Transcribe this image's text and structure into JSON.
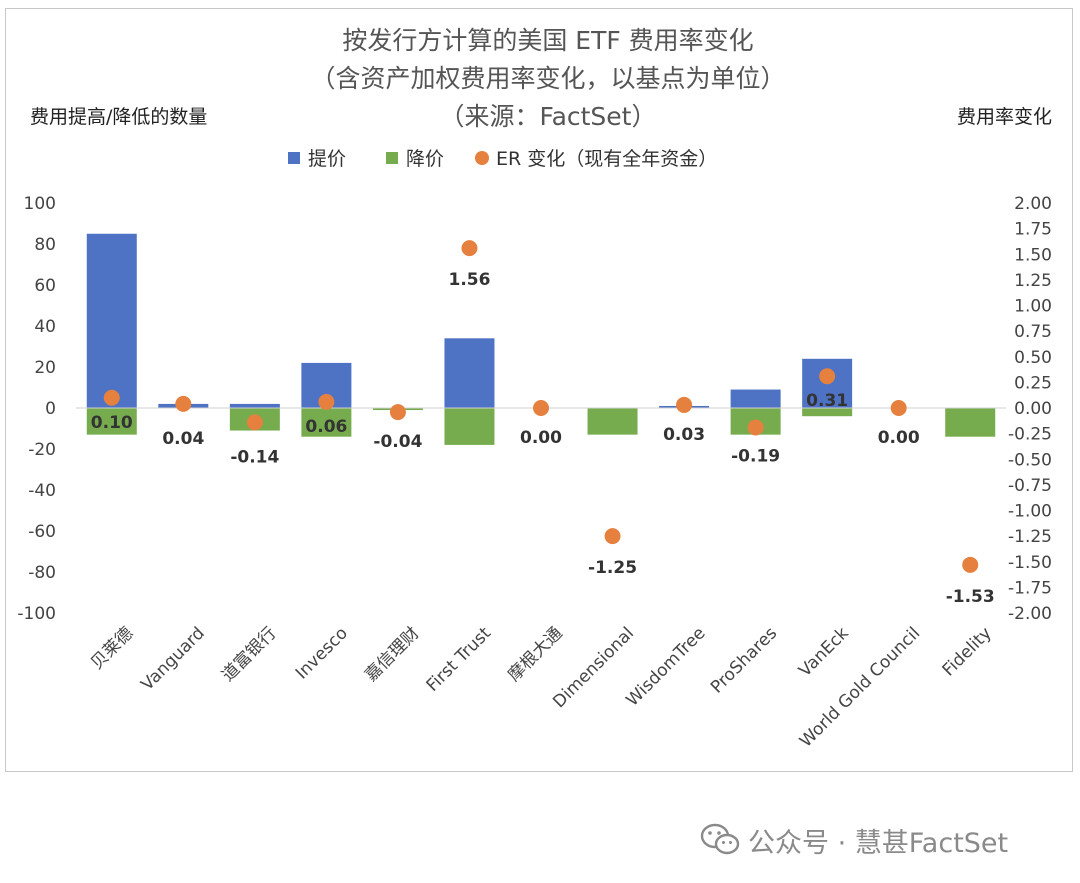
{
  "chart_data": {
    "type": "bar",
    "title_lines": [
      "按发行方计算的美国 ETF 费用率变化",
      "（含资产加权费用率变化，以基点为单位）",
      "（来源：FactSet）"
    ],
    "ylabel_left": "费用提高/降低的数量",
    "ylabel_right": "费用率变化",
    "legend": [
      {
        "name": "提价",
        "color": "#4e72c4",
        "shape": "square"
      },
      {
        "name": "降价",
        "color": "#76ac4e",
        "shape": "square"
      },
      {
        "name": "ER 变化（现有全年资金）",
        "color": "#e5803e",
        "shape": "circle"
      }
    ],
    "legend_position": "top",
    "categories": [
      "贝莱德",
      "Vanguard",
      "道富银行",
      "Invesco",
      "嘉信理财",
      "First Trust",
      "摩根大通",
      "Dimensional",
      "WisdomTree",
      "ProShares",
      "VanEck",
      "World Gold Council",
      "Fidelity"
    ],
    "series": [
      {
        "name": "提价",
        "axis": "left",
        "type": "bar",
        "color": "#4e72c4",
        "values": [
          85,
          2,
          2,
          22,
          0,
          34,
          0,
          0,
          1,
          9,
          24,
          0,
          0
        ]
      },
      {
        "name": "降价",
        "axis": "left",
        "type": "bar",
        "color": "#76ac4e",
        "values": [
          -13,
          0,
          -11,
          -14,
          -1,
          -18,
          0,
          -13,
          0,
          -13,
          -4,
          0,
          -14
        ]
      },
      {
        "name": "ER 变化（现有全年资金）",
        "axis": "right",
        "type": "scatter",
        "color": "#e5803e",
        "values": [
          0.1,
          0.04,
          -0.14,
          0.06,
          -0.04,
          1.56,
          0.0,
          -1.25,
          0.03,
          -0.19,
          0.31,
          0.0,
          -1.53
        ],
        "labels": [
          "0.10",
          "0.04",
          "-0.14",
          "0.06",
          "-0.04",
          "1.56",
          "0.00",
          "-1.25",
          "0.03",
          "-0.19",
          "0.31",
          "0.00",
          "-1.53"
        ]
      }
    ],
    "ylim_left": [
      -100,
      100
    ],
    "yticks_left": [
      "100",
      "80",
      "60",
      "40",
      "20",
      "0",
      "-20",
      "-40",
      "-60",
      "-80",
      "-100"
    ],
    "ylim_right": [
      -2,
      2
    ],
    "yticks_right": [
      "2.00",
      "1.75",
      "1.50",
      "1.25",
      "1.00",
      "0.75",
      "0.50",
      "0.25",
      "0.00",
      "-0.25",
      "-0.50",
      "-0.75",
      "-1.00",
      "-1.25",
      "-1.50",
      "-1.75",
      "-2.00"
    ],
    "grid": false
  },
  "watermark": {
    "icon": "wechat-icon",
    "text": "公众号 · 慧甚FactSet"
  }
}
